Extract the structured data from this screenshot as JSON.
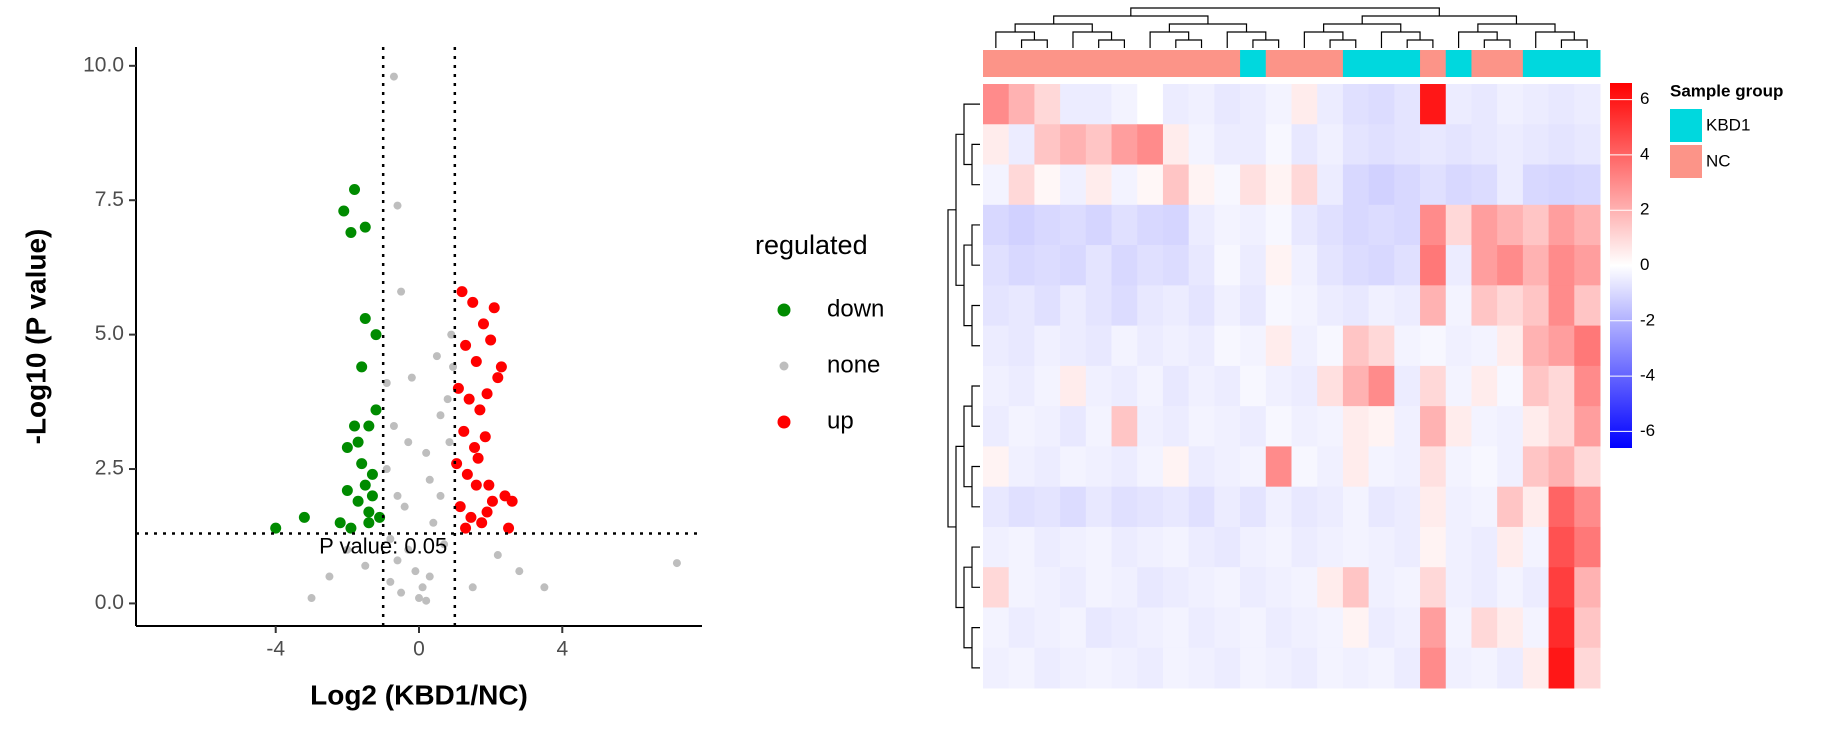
{
  "chart_data": [
    {
      "type": "scatter",
      "x_label": "Log2 (KBD1/NC)",
      "y_label": "-Log10 (P value)",
      "xlim": [
        -7.9,
        7.9
      ],
      "ylim": [
        -0.42,
        10.35
      ],
      "xticks": [
        -4,
        0,
        4
      ],
      "yticks": [
        {
          "value": 0,
          "label": "0.0"
        },
        2.5,
        {
          "value": 5,
          "label": "5.0"
        },
        7.5,
        {
          "value": 10,
          "label": "10.0"
        }
      ],
      "thresholds": {
        "x": [
          -1,
          1
        ],
        "y": 1.301
      },
      "annotation": "P value: 0.05",
      "legend_title": "regulated",
      "series": [
        {
          "name": "down",
          "color": "#008b00",
          "x": [
            -1.8,
            -2.1,
            -1.5,
            -1.9,
            -1.4,
            -1.6,
            -1.2,
            -1.8,
            -1.3,
            -2.0,
            -1.5,
            -1.7,
            -1.1,
            -1.4,
            -2.2,
            -1.6,
            -1.3,
            -1.9,
            -4.0,
            -3.2,
            -1.5,
            -1.2,
            -1.7,
            -1.4,
            -2.0
          ],
          "y": [
            7.7,
            7.3,
            5.3,
            6.9,
            3.3,
            4.4,
            3.6,
            3.3,
            2.4,
            2.9,
            2.2,
            1.9,
            1.6,
            1.7,
            1.5,
            2.6,
            2.0,
            1.4,
            1.4,
            1.6,
            7.0,
            5.0,
            3.0,
            1.5,
            2.1
          ]
        },
        {
          "name": "none",
          "color": "#bebebe",
          "x": [
            -0.5,
            0.3,
            -0.8,
            0.6,
            0,
            -0.3,
            0.8,
            -0.6,
            0.4,
            -0.2,
            0.1,
            -0.9,
            0.9,
            -0.4,
            0.5,
            -0.7,
            0.2,
            -0.1,
            0.7,
            -0.5,
            -2.5,
            -3,
            2.8,
            3.5,
            7.2,
            -1.5,
            1.5,
            2.2,
            -2,
            0.3,
            -0.9,
            0.95,
            -0.6,
            0.6,
            -0.3,
            0.2,
            -0.8,
            0.85,
            -0.7,
            -0.6
          ],
          "y": [
            0.2,
            0.5,
            1.2,
            2.0,
            0.1,
            3.0,
            3.8,
            0.8,
            1.5,
            4.2,
            0.3,
            2.5,
            5.0,
            1.8,
            4.6,
            3.3,
            2.8,
            0.6,
            1.1,
            5.8,
            0.5,
            0.1,
            0.6,
            0.3,
            0.75,
            0.7,
            0.3,
            0.9,
            1.0,
            2.3,
            4.1,
            4.4,
            2.0,
            3.5,
            1.0,
            0.05,
            0.4,
            3.0,
            9.8,
            7.4
          ]
        },
        {
          "name": "up",
          "color": "#ff0000",
          "x": [
            1.2,
            1.5,
            1.8,
            2.1,
            1.3,
            1.6,
            2.0,
            2.3,
            1.1,
            1.4,
            1.7,
            1.9,
            2.2,
            1.25,
            1.55,
            1.85,
            1.05,
            1.35,
            1.65,
            1.95,
            2.4,
            2.6,
            1.15,
            1.45,
            1.75,
            2.05,
            1.3,
            1.6,
            1.9,
            2.5
          ],
          "y": [
            5.8,
            5.6,
            5.2,
            5.5,
            4.8,
            4.5,
            4.9,
            4.4,
            4.0,
            3.8,
            3.6,
            3.9,
            4.2,
            3.2,
            2.9,
            3.1,
            2.6,
            2.4,
            2.7,
            2.2,
            2.0,
            1.9,
            1.8,
            1.6,
            1.5,
            1.9,
            1.4,
            2.2,
            1.7,
            1.4
          ]
        }
      ]
    },
    {
      "type": "heatmap",
      "clim": [
        -6.6,
        6.6
      ],
      "colorbar_ticks": [
        -6,
        -4,
        -2,
        0,
        2,
        4,
        6
      ],
      "colors": [
        "#0000ff",
        "#ffffff",
        "#ff0000"
      ],
      "legend_title": "Sample group",
      "groups": [
        {
          "name": "KBD1",
          "color": "#00d8de"
        },
        {
          "name": "NC",
          "color": "#fc9488"
        }
      ],
      "column_group": [
        1,
        1,
        1,
        1,
        1,
        1,
        1,
        1,
        1,
        1,
        0,
        1,
        1,
        1,
        0,
        0,
        0,
        1,
        0,
        1,
        1,
        0,
        0,
        0
      ],
      "values": [
        [
          3,
          2,
          1,
          -0.5,
          -0.5,
          -0.3,
          0,
          -0.5,
          -0.4,
          -0.6,
          -0.5,
          -0.3,
          0.5,
          -0.5,
          -0.8,
          -0.9,
          -0.7,
          6,
          -0.5,
          -0.6,
          -0.4,
          -0.5,
          -0.6,
          -0.5
        ],
        [
          0.5,
          -0.5,
          1.5,
          2,
          1.5,
          2.5,
          3,
          0.5,
          -0.3,
          -0.5,
          -0.5,
          -0.2,
          -0.6,
          -0.4,
          -0.7,
          -0.8,
          -0.7,
          -0.6,
          -0.7,
          -0.6,
          -0.5,
          -0.6,
          -0.7,
          -0.6
        ],
        [
          -0.3,
          1,
          0.2,
          -0.4,
          0.5,
          -0.3,
          0.2,
          1.5,
          0.3,
          -0.2,
          0.8,
          0.3,
          1,
          -0.5,
          -1,
          -1.2,
          -1,
          -0.8,
          -1,
          -0.9,
          -0.5,
          -1,
          -1.1,
          -1
        ],
        [
          -1,
          -1.2,
          -1,
          -0.9,
          -1.1,
          -0.8,
          -1,
          -1.1,
          -0.5,
          -0.3,
          -0.4,
          -0.2,
          -0.6,
          -0.8,
          -1,
          -0.9,
          -1,
          3,
          1,
          2.5,
          2,
          1.5,
          2.5,
          2
        ],
        [
          -0.8,
          -1,
          -0.9,
          -1,
          -0.7,
          -1,
          -0.8,
          -0.9,
          -0.6,
          -0.2,
          -0.5,
          0.3,
          -0.4,
          -0.7,
          -0.9,
          -1,
          -0.8,
          3.5,
          -0.5,
          2.5,
          3,
          2,
          3,
          2.5
        ],
        [
          -0.7,
          -0.6,
          -0.8,
          -0.5,
          -0.7,
          -0.9,
          -0.6,
          -0.5,
          -0.7,
          -0.4,
          -0.6,
          -0.2,
          -0.3,
          -0.5,
          -0.6,
          -0.4,
          -0.5,
          2,
          -0.3,
          1.5,
          1,
          1.5,
          3,
          1.5
        ],
        [
          -0.5,
          -0.6,
          -0.4,
          -0.5,
          -0.6,
          -0.3,
          -0.5,
          -0.4,
          -0.5,
          -0.2,
          -0.3,
          0.5,
          -0.4,
          -0.2,
          1.5,
          1,
          -0.3,
          -0.2,
          -0.4,
          -0.3,
          0.5,
          2,
          2.5,
          3.5
        ],
        [
          -0.4,
          -0.5,
          -0.3,
          0.5,
          -0.4,
          -0.5,
          -0.3,
          -0.6,
          -0.4,
          -0.5,
          -0.2,
          -0.4,
          -0.5,
          0.8,
          2,
          3,
          -0.5,
          1,
          -0.3,
          0.5,
          -0.2,
          1.5,
          1,
          3
        ],
        [
          -0.5,
          -0.3,
          -0.4,
          -0.6,
          -0.3,
          1.5,
          -0.4,
          -0.5,
          -0.3,
          -0.4,
          -0.5,
          -0.2,
          -0.4,
          -0.3,
          0.5,
          0.3,
          -0.4,
          2,
          0.5,
          -0.3,
          -0.4,
          0.5,
          1,
          2.5
        ],
        [
          0.3,
          -0.4,
          -0.5,
          -0.3,
          -0.4,
          -0.5,
          -0.3,
          0.3,
          -0.5,
          -0.4,
          -0.3,
          3,
          -0.2,
          -0.4,
          0.5,
          -0.3,
          -0.4,
          0.8,
          -0.3,
          -0.2,
          -0.4,
          1.5,
          2,
          1
        ],
        [
          -0.6,
          -0.8,
          -0.7,
          -0.9,
          -0.6,
          -0.8,
          -0.7,
          -0.6,
          -0.8,
          -0.5,
          -0.7,
          -0.4,
          -0.6,
          -0.5,
          -0.3,
          -0.6,
          -0.5,
          0.5,
          -0.4,
          -0.3,
          1.5,
          0.5,
          4,
          3
        ],
        [
          -0.4,
          -0.3,
          -0.5,
          -0.4,
          -0.3,
          -0.5,
          -0.4,
          -0.3,
          -0.5,
          -0.6,
          -0.4,
          -0.3,
          -0.5,
          -0.4,
          -0.3,
          -0.4,
          -0.5,
          0.3,
          -0.4,
          -0.5,
          0.5,
          -0.3,
          4.5,
          3.5
        ],
        [
          1,
          -0.3,
          -0.4,
          -0.5,
          -0.3,
          -0.4,
          -0.6,
          -0.5,
          -0.4,
          -0.3,
          -0.5,
          -0.4,
          -0.3,
          0.5,
          1.5,
          -0.4,
          -0.3,
          1,
          -0.4,
          -0.5,
          -0.3,
          -0.5,
          5,
          2
        ],
        [
          -0.3,
          -0.5,
          -0.4,
          -0.3,
          -0.6,
          -0.5,
          -0.4,
          -0.3,
          -0.5,
          -0.4,
          -0.3,
          -0.5,
          -0.4,
          -0.3,
          0.3,
          -0.5,
          -0.4,
          2.5,
          -0.3,
          1,
          0.5,
          -0.3,
          5.5,
          1.5
        ],
        [
          -0.4,
          -0.3,
          -0.5,
          -0.4,
          -0.3,
          -0.4,
          -0.5,
          -0.3,
          -0.4,
          -0.5,
          -0.3,
          -0.4,
          -0.5,
          -0.3,
          -0.4,
          -0.3,
          -0.5,
          3,
          -0.4,
          -0.3,
          -0.5,
          0.5,
          6,
          1
        ]
      ]
    }
  ]
}
